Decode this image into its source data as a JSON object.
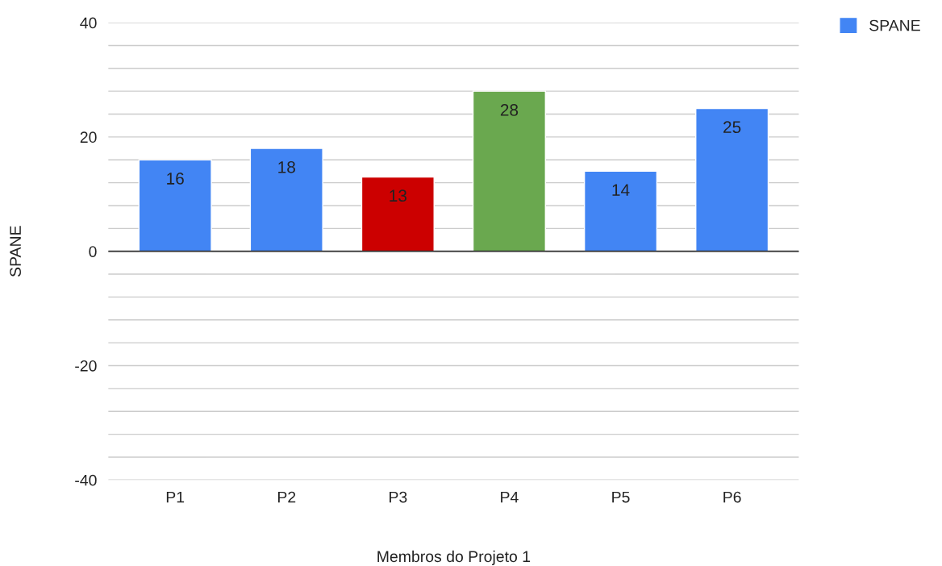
{
  "chart_data": {
    "type": "bar",
    "xlabel": "Membros do Projeto 1",
    "ylabel": "SPANE",
    "categories": [
      "P1",
      "P2",
      "P3",
      "P4",
      "P5",
      "P6"
    ],
    "series": [
      {
        "name": "SPANE",
        "color": "#4285f4",
        "colors": [
          "#4285f4",
          "#4285f4",
          "#cc0000",
          "#6aa84f",
          "#4285f4",
          "#4285f4"
        ],
        "values": [
          16,
          18,
          13,
          28,
          14,
          25
        ]
      }
    ],
    "ylim": [
      -40,
      40
    ],
    "yticks": [
      -40,
      {
        "value": -36,
        "label": null
      },
      {
        "value": -32,
        "label": null
      },
      {
        "value": -28,
        "label": null
      },
      {
        "value": -24,
        "label": null
      },
      -20,
      {
        "value": -16,
        "label": null
      },
      {
        "value": -12,
        "label": null
      },
      {
        "value": -8,
        "label": null
      },
      {
        "value": -4,
        "label": null
      },
      0,
      {
        "value": 4,
        "label": null
      },
      {
        "value": 8,
        "label": null
      },
      {
        "value": 12,
        "label": null
      },
      {
        "value": 16,
        "label": null
      },
      20,
      {
        "value": 24,
        "label": null
      },
      {
        "value": 28,
        "label": null
      },
      {
        "value": 32,
        "label": null
      },
      {
        "value": 36,
        "label": null
      },
      40
    ],
    "grid": "y",
    "legend": "top right",
    "data_labels": true
  }
}
